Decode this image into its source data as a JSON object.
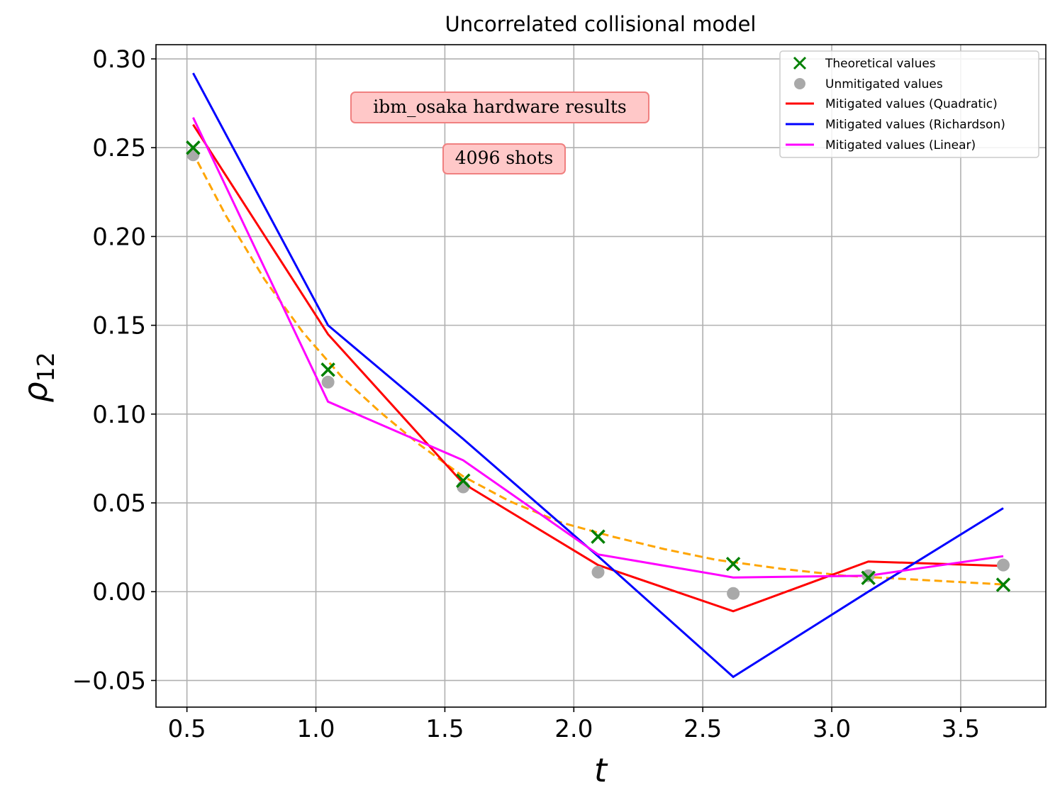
{
  "chart_data": {
    "type": "line",
    "title": "Uncorrelated collisional model",
    "xlabel": "t",
    "ylabel_symbol": "ρ",
    "ylabel_subscript": "12",
    "xlim": [
      0.38,
      3.83
    ],
    "ylim": [
      -0.065,
      0.308
    ],
    "x_ticks": [
      0.5,
      1.0,
      1.5,
      2.0,
      2.5,
      3.0,
      3.5
    ],
    "x_tick_labels": [
      "0.5",
      "1.0",
      "1.5",
      "2.0",
      "2.5",
      "3.0",
      "3.5"
    ],
    "y_ticks": [
      -0.05,
      0.0,
      0.05,
      0.1,
      0.15,
      0.2,
      0.25,
      0.3
    ],
    "y_tick_labels": [
      "−0.05",
      "0.00",
      "0.05",
      "0.10",
      "0.15",
      "0.20",
      "0.25",
      "0.30"
    ],
    "grid": true,
    "legend_position": "top-right",
    "x": [
      0.524,
      1.047,
      1.571,
      2.094,
      2.618,
      3.142,
      3.665
    ],
    "theory_curve": {
      "name": "theory curve",
      "color": "#ffa500",
      "x": [
        0.52,
        0.65,
        0.8,
        0.95,
        1.1,
        1.25,
        1.4,
        1.57,
        1.75,
        1.95,
        2.15,
        2.35,
        2.55,
        2.8,
        3.05,
        3.3,
        3.55,
        3.67
      ],
      "y": [
        0.248,
        0.212,
        0.176,
        0.146,
        0.121,
        0.101,
        0.083,
        0.065,
        0.051,
        0.039,
        0.031,
        0.024,
        0.018,
        0.013,
        0.009,
        0.007,
        0.005,
        0.004
      ]
    },
    "series": [
      {
        "name": "Theoretical values",
        "kind": "scatter",
        "marker": "x",
        "color": "#008000",
        "values": [
          0.25,
          0.125,
          0.0625,
          0.031,
          0.0156,
          0.0078,
          0.0039
        ]
      },
      {
        "name": "Unmitigated values",
        "kind": "scatter",
        "marker": "o",
        "color": "#a9a9a9",
        "values": [
          0.246,
          0.118,
          0.059,
          0.011,
          -0.001,
          0.009,
          0.015
        ]
      },
      {
        "name": "Mitigated values (Quadratic)",
        "kind": "line",
        "color": "#ff0000",
        "values": [
          0.263,
          0.145,
          0.061,
          0.015,
          -0.011,
          0.017,
          0.0145
        ]
      },
      {
        "name": "Mitigated values (Richardson)",
        "kind": "line",
        "color": "#0000ff",
        "values": [
          0.292,
          0.15,
          0.086,
          0.02,
          -0.048,
          0.0,
          0.047
        ]
      },
      {
        "name": "Mitigated values (Linear)",
        "kind": "line",
        "color": "#ff00ff",
        "values": [
          0.267,
          0.107,
          0.074,
          0.021,
          0.008,
          0.009,
          0.02
        ]
      }
    ],
    "annotations": [
      "ibm_osaka hardware results",
      "4096 shots"
    ]
  }
}
